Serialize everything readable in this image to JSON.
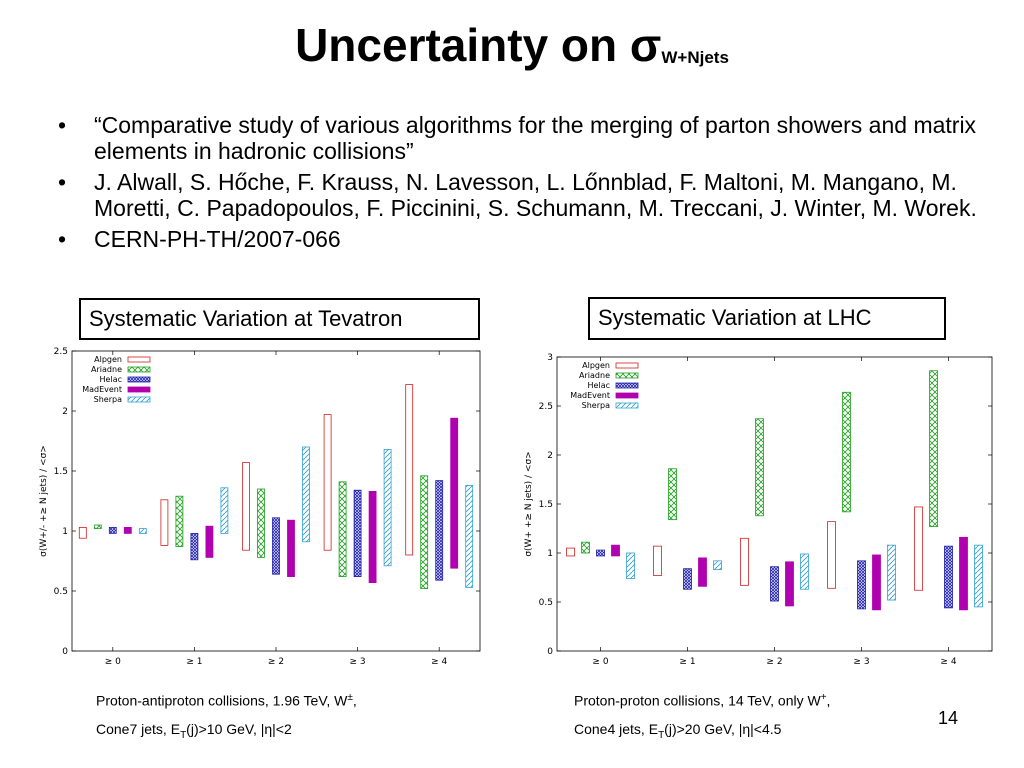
{
  "slide": {
    "title": "Uncertainty on σ",
    "title_sub": "W+Njets",
    "bullets": [
      "“Comparative study of various algorithms for the merging of parton showers and matrix elements in hadronic collisions”",
      "J. Alwall, S. Hőche, F. Krauss, N. Lavesson, L. Lőnnblad, F. Maltoni, M. Mangano, M. Moretti, C. Papadopoulos, F. Piccinini, S. Schumann, M. Treccani, J. Winter, M. Worek.",
      "CERN-PH-TH/2007-066"
    ],
    "bullet_symbol": "•",
    "left_box": "Systematic Variation at Tevatron",
    "right_box": "Systematic Variation at LHC",
    "left_caption": {
      "line1_a": "Proton-antiproton collisions, 1.96 TeV, W",
      "line1_sup": "±",
      "line1_b": ",",
      "line2_a": "Cone7 jets, E",
      "line2_sub": "T",
      "line2_b": "(j)>10 GeV, |η|<2"
    },
    "right_caption": {
      "line1_a": "Proton-proton collisions, 14 TeV, only W",
      "line1_sup": "+",
      "line1_b": ",",
      "line2_a": "Cone4 jets, E",
      "line2_sub": "T",
      "line2_b": "(j)>20 GeV, |η|<4.5"
    },
    "page_number": "14"
  },
  "chart_data": [
    {
      "type": "bar",
      "subtype": "floating-range",
      "ylabel": "σ(W+/- +≥ N jets) / <σ>",
      "ylim": [
        0,
        2.5
      ],
      "yticks": [
        "0",
        "0.5",
        "1",
        "1.5",
        "2",
        "2.5"
      ],
      "ytick_values": [
        0,
        0.5,
        1,
        1.5,
        2,
        2.5
      ],
      "categories": [
        "≥ 0",
        "≥ 1",
        "≥ 2",
        "≥ 3",
        "≥ 4"
      ],
      "legend_position": "top-left",
      "series": [
        {
          "name": "Alpgen",
          "color": "#d02020",
          "pattern": "outline",
          "ranges": [
            [
              0.94,
              1.03
            ],
            [
              0.88,
              1.26
            ],
            [
              0.84,
              1.57
            ],
            [
              0.84,
              1.97
            ],
            [
              0.8,
              2.22
            ]
          ]
        },
        {
          "name": "Ariadne",
          "color": "#20a020",
          "pattern": "crosshatch",
          "ranges": [
            [
              1.02,
              1.05
            ],
            [
              0.87,
              1.29
            ],
            [
              0.78,
              1.35
            ],
            [
              0.62,
              1.41
            ],
            [
              0.52,
              1.46
            ]
          ]
        },
        {
          "name": "Helac",
          "color": "#2020b0",
          "pattern": "dense",
          "ranges": [
            [
              0.98,
              1.03
            ],
            [
              0.76,
              0.98
            ],
            [
              0.64,
              1.11
            ],
            [
              0.62,
              1.34
            ],
            [
              0.59,
              1.42
            ]
          ]
        },
        {
          "name": "MadEvent",
          "color": "#b000b0",
          "pattern": "solid",
          "ranges": [
            [
              0.98,
              1.03
            ],
            [
              0.78,
              1.04
            ],
            [
              0.62,
              1.09
            ],
            [
              0.57,
              1.33
            ],
            [
              0.69,
              1.94
            ]
          ]
        },
        {
          "name": "Sherpa",
          "color": "#30a0d0",
          "pattern": "diagonal",
          "ranges": [
            [
              0.98,
              1.02
            ],
            [
              0.98,
              1.36
            ],
            [
              0.91,
              1.7
            ],
            [
              0.71,
              1.68
            ],
            [
              0.53,
              1.38
            ]
          ]
        }
      ]
    },
    {
      "type": "bar",
      "subtype": "floating-range",
      "ylabel": "σ(W+ +≥ N jets) / <σ>",
      "ylim": [
        0,
        3
      ],
      "yticks": [
        "0",
        "0.5",
        "1",
        "1.5",
        "2",
        "2.5",
        "3"
      ],
      "ytick_values": [
        0,
        0.5,
        1,
        1.5,
        2,
        2.5,
        3
      ],
      "categories": [
        "≥ 0",
        "≥ 1",
        "≥ 2",
        "≥ 3",
        "≥ 4"
      ],
      "legend_position": "top-left",
      "series": [
        {
          "name": "Alpgen",
          "color": "#d02020",
          "pattern": "outline",
          "ranges": [
            [
              0.97,
              1.05
            ],
            [
              0.77,
              1.07
            ],
            [
              0.67,
              1.15
            ],
            [
              0.64,
              1.32
            ],
            [
              0.62,
              1.47
            ]
          ]
        },
        {
          "name": "Ariadne",
          "color": "#20a020",
          "pattern": "crosshatch",
          "ranges": [
            [
              1.0,
              1.11
            ],
            [
              1.34,
              1.86
            ],
            [
              1.38,
              2.37
            ],
            [
              1.42,
              2.64
            ],
            [
              1.27,
              2.86
            ]
          ]
        },
        {
          "name": "Helac",
          "color": "#2020b0",
          "pattern": "dense",
          "ranges": [
            [
              0.97,
              1.03
            ],
            [
              0.63,
              0.84
            ],
            [
              0.51,
              0.86
            ],
            [
              0.43,
              0.92
            ],
            [
              0.44,
              1.07
            ]
          ]
        },
        {
          "name": "MadEvent",
          "color": "#b000b0",
          "pattern": "solid",
          "ranges": [
            [
              0.97,
              1.08
            ],
            [
              0.66,
              0.95
            ],
            [
              0.46,
              0.91
            ],
            [
              0.42,
              0.98
            ],
            [
              0.42,
              1.16
            ]
          ]
        },
        {
          "name": "Sherpa",
          "color": "#30a0d0",
          "pattern": "diagonal",
          "ranges": [
            [
              0.74,
              1.0
            ],
            [
              0.83,
              0.92
            ],
            [
              0.63,
              0.99
            ],
            [
              0.52,
              1.08
            ],
            [
              0.45,
              1.08
            ]
          ]
        }
      ]
    }
  ]
}
